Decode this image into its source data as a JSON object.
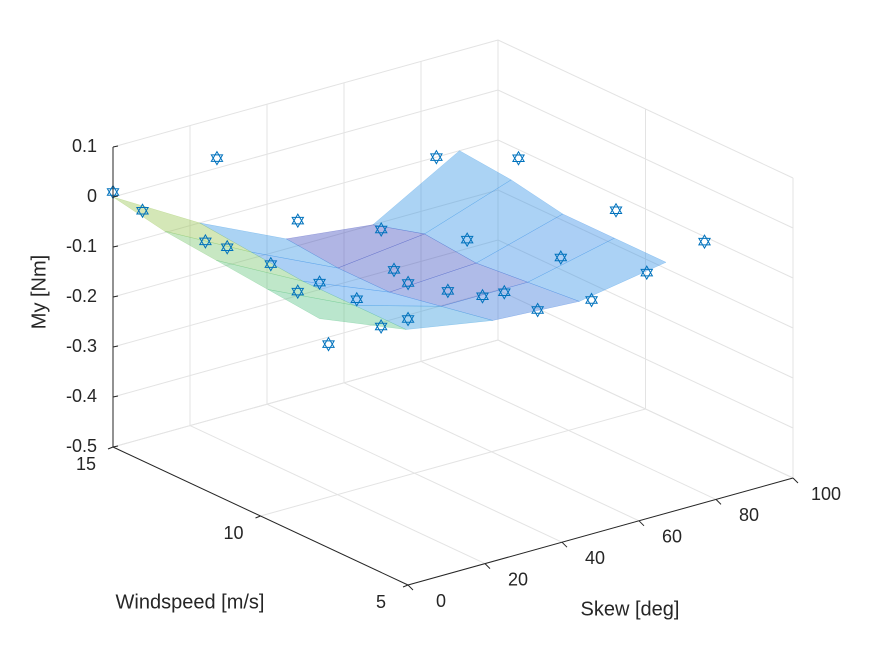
{
  "chart_data": {
    "type": "surface3d",
    "xlabel": "Skew [deg]",
    "ylabel": "Windspeed [m/s]",
    "zlabel": "My [Nm]",
    "xlim": [
      0,
      100
    ],
    "ylim": [
      5,
      15
    ],
    "zlim": [
      -0.5,
      0.1
    ],
    "xticks": [
      0,
      20,
      40,
      60,
      80,
      100
    ],
    "yticks": [
      5,
      10,
      15
    ],
    "zticks": [
      -0.5,
      -0.4,
      -0.3,
      -0.2,
      -0.1,
      0,
      0.1
    ],
    "grid": true,
    "surface": {
      "colormap": "parula",
      "alpha": 0.4,
      "x": [
        0,
        22.5,
        45,
        67.5,
        90
      ],
      "y": [
        8,
        9.75,
        11.5,
        13.25,
        15
      ],
      "z": [
        [
          -0.05,
          -0.12,
          -0.15,
          -0.16,
          -0.13
        ],
        [
          -0.04,
          -0.12,
          -0.17,
          -0.17,
          -0.13
        ],
        [
          -0.03,
          -0.12,
          -0.19,
          -0.18,
          -0.13
        ],
        [
          -0.02,
          -0.11,
          -0.19,
          -0.17,
          -0.11
        ],
        [
          0,
          -0.1,
          -0.18,
          -0.2,
          -0.1
        ]
      ]
    },
    "series": [
      {
        "color": "#0072bd",
        "marker": "hexagram",
        "x": [
          0,
          0,
          27,
          24,
          22,
          48,
          18,
          25,
          23,
          10,
          25,
          62,
          50,
          46,
          16,
          23,
          84,
          69,
          41,
          50,
          48,
          90,
          78,
          49,
          100,
          63,
          85,
          100
        ],
        "y": [
          15,
          14,
          15,
          15,
          14,
          15,
          12,
          12,
          11,
          9,
          10,
          14,
          12,
          11,
          8,
          8,
          15,
          12,
          9,
          9,
          8,
          13,
          10,
          7,
          11,
          7,
          8,
          8
        ],
        "z": [
          0.01,
          0,
          0.02,
          -0.14,
          -0.12,
          -0.15,
          -0.09,
          -0.16,
          -0.11,
          -0.15,
          -0.12,
          -0.17,
          -0.17,
          -0.16,
          -0.1,
          -0.1,
          -0.1,
          -0.15,
          -0.11,
          -0.14,
          -0.1,
          -0.06,
          -0.15,
          -0.11,
          -0.13,
          -0.12,
          -0.14,
          -0.11
        ]
      }
    ]
  }
}
